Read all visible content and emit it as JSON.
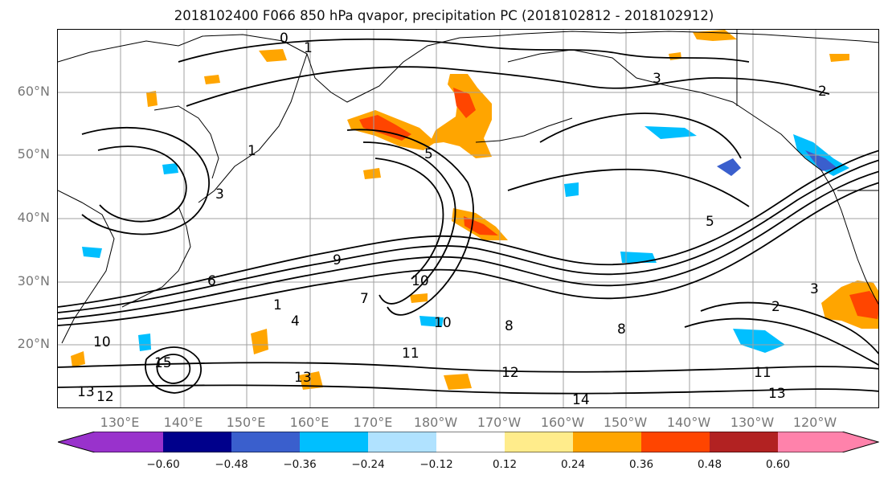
{
  "title": "2018102400 F066 850 hPa qvapor, precipitation PC (2018102812 - 2018102912)",
  "map": {
    "lat_labels": [
      "60°N",
      "50°N",
      "40°N",
      "30°N",
      "20°N"
    ],
    "lon_labels": [
      "130°E",
      "140°E",
      "150°E",
      "160°E",
      "170°E",
      "180°W",
      "170°W",
      "160°W",
      "150°W",
      "140°W",
      "130°W",
      "120°W"
    ],
    "contour_labels": [
      "0",
      "1",
      "3",
      "2",
      "1",
      "3",
      "5",
      "6",
      "9",
      "10",
      "10",
      "7",
      "8",
      "1",
      "11",
      "12",
      "13",
      "13",
      "14",
      "15",
      "12",
      "10",
      "2",
      "4",
      "11",
      "13",
      "5",
      "3",
      "8"
    ],
    "colors": {
      "contour": "#000000",
      "grid": "#a0a0a0",
      "coast": "#000000"
    }
  },
  "colorbar": {
    "colors": [
      "#9932cc",
      "#00008b",
      "#3a5fcd",
      "#00bfff",
      "#b0e2ff",
      "#ffffff",
      "#ffec8b",
      "#ffa500",
      "#ff4500",
      "#b22222",
      "#ff82ab"
    ],
    "tick_labels": [
      "−0.60",
      "−0.48",
      "−0.36",
      "−0.24",
      "−0.12",
      "0.12",
      "0.24",
      "0.36",
      "0.48",
      "0.60"
    ]
  }
}
